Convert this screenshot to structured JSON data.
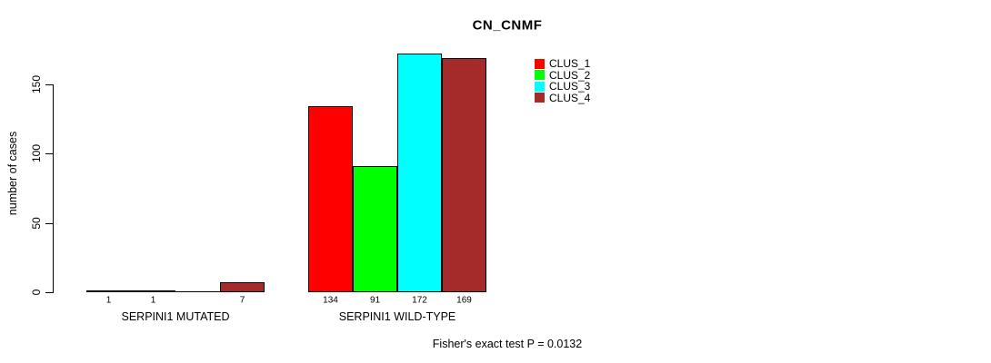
{
  "title": "CN_CNMF",
  "chart_data": {
    "type": "bar",
    "title": "CN_CNMF",
    "ylabel": "number of cases",
    "xlabel": "",
    "categories": [
      "SERPINI1 MUTATED",
      "SERPINI1 WILD-TYPE"
    ],
    "series": [
      {
        "name": "CLUS_1",
        "color": "#ff0000",
        "values": [
          1,
          134
        ]
      },
      {
        "name": "CLUS_2",
        "color": "#00ff00",
        "values": [
          1,
          91
        ]
      },
      {
        "name": "CLUS_3",
        "color": "#00ffff",
        "values": [
          0,
          172
        ]
      },
      {
        "name": "CLUS_4",
        "color": "#a52a2a",
        "values": [
          7,
          169
        ]
      }
    ],
    "yticks": [
      0,
      50,
      100,
      150
    ],
    "ylim": [
      0,
      172
    ],
    "grid": false,
    "legend_position": "top-right",
    "bar_value_labels": [
      [
        "1",
        "1",
        "",
        "7"
      ],
      [
        "134",
        "91",
        "172",
        "169"
      ]
    ],
    "annotation": "Fisher's exact test P = 0.0132",
    "background": "#ffffff",
    "axis_color": "#000000"
  }
}
